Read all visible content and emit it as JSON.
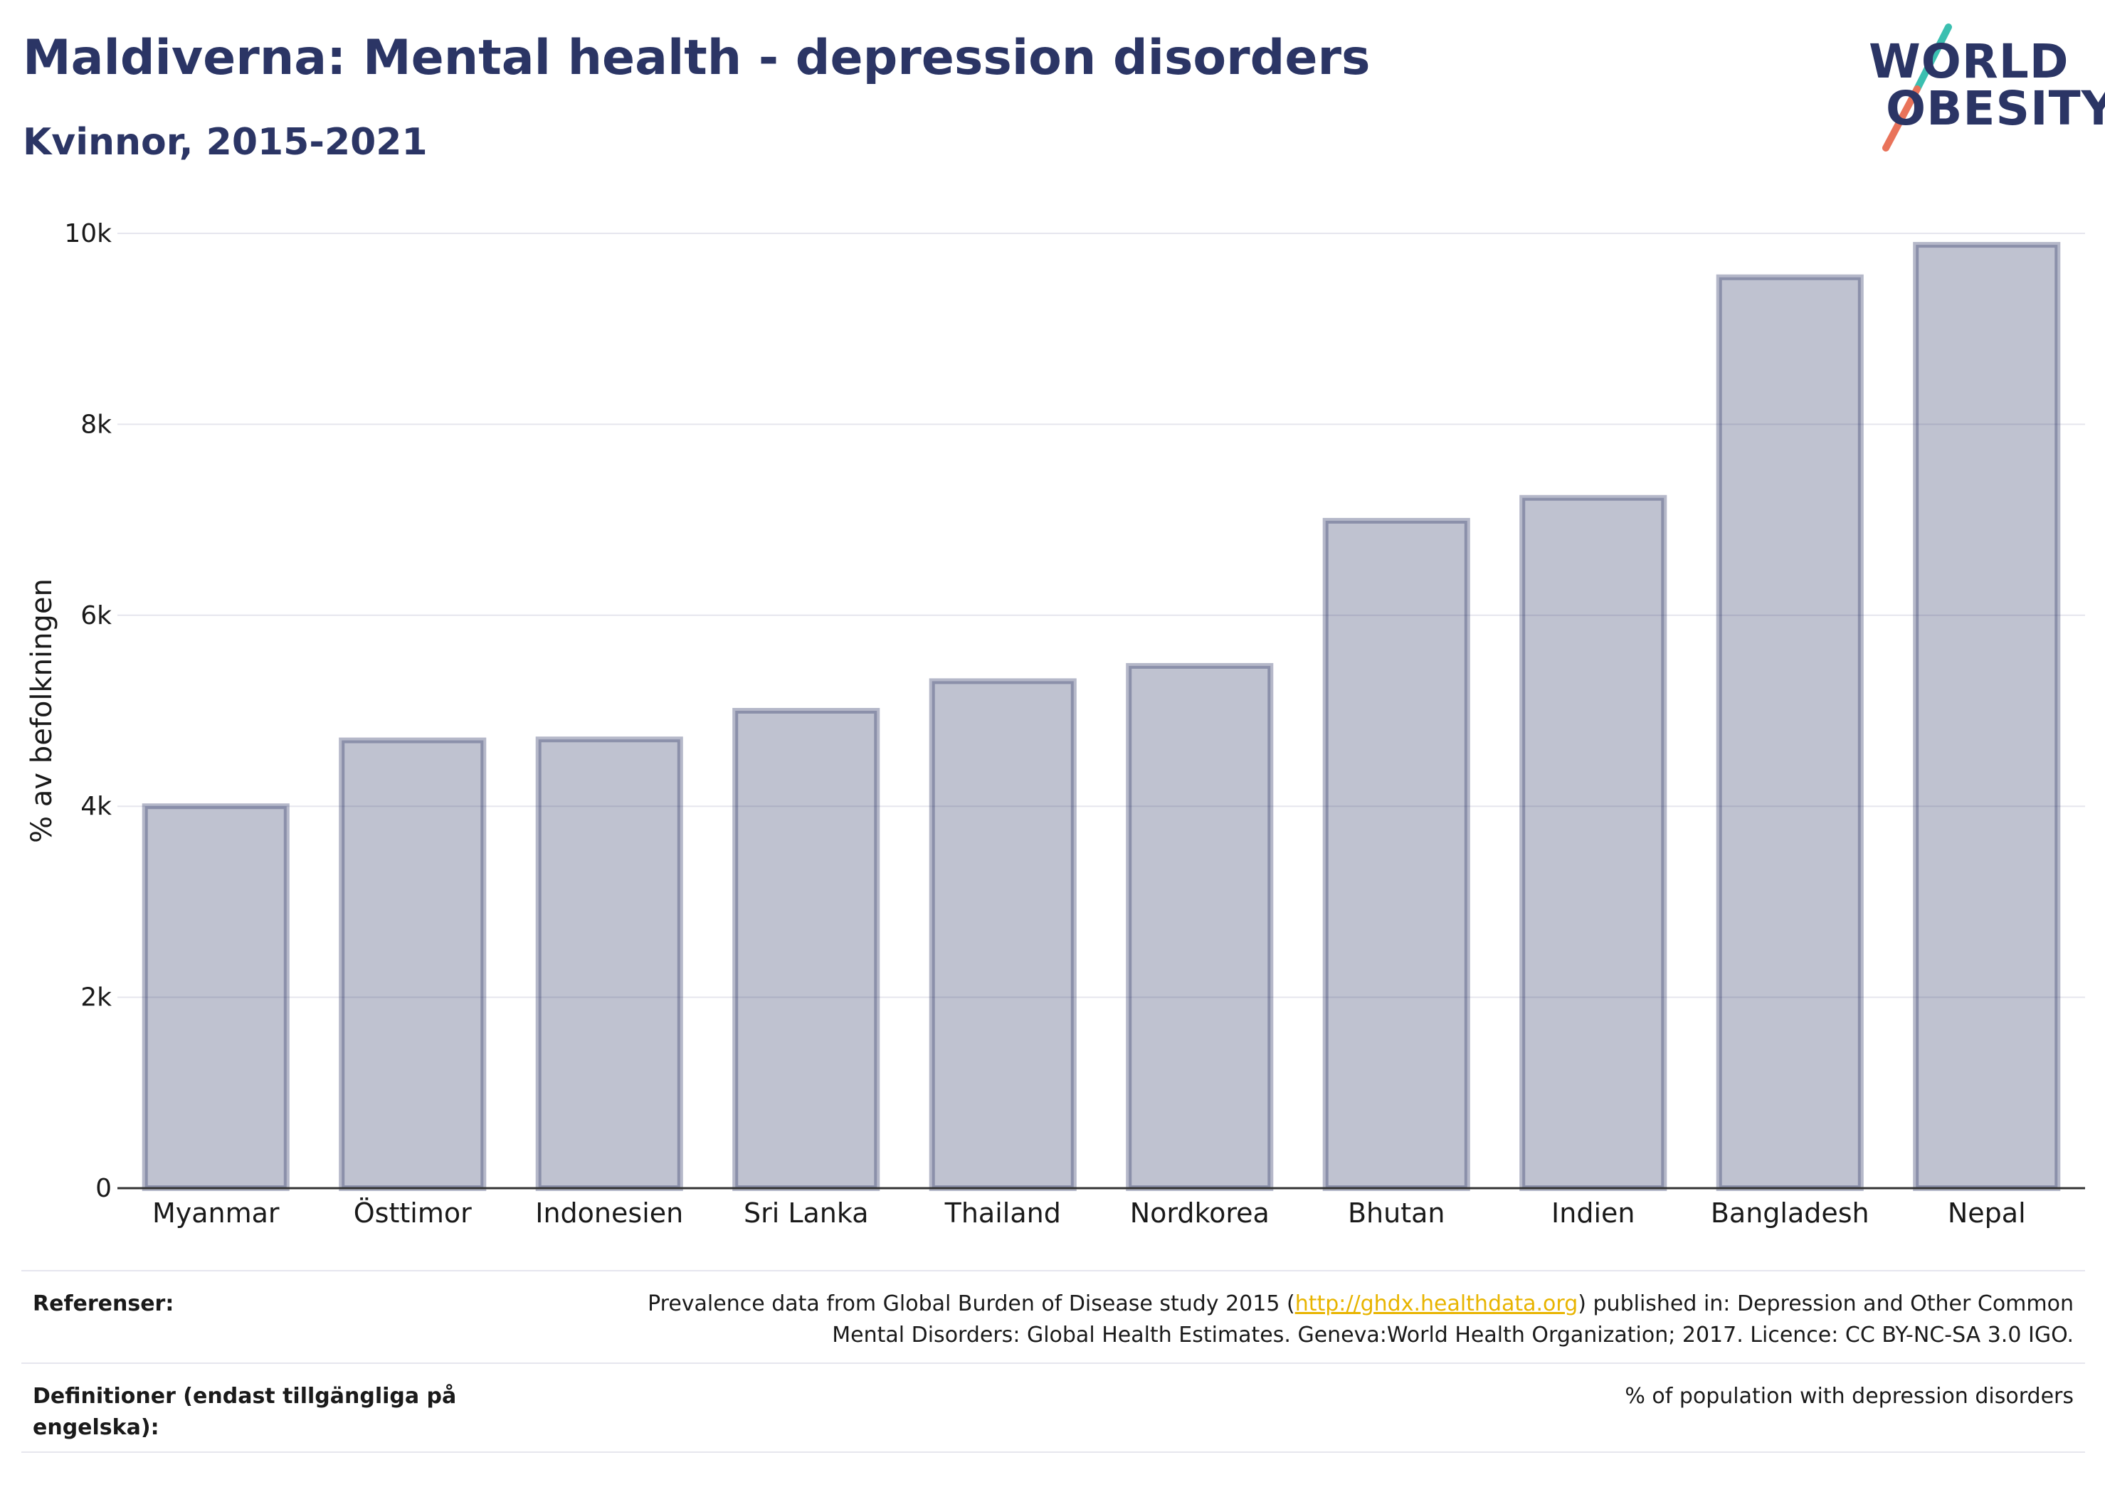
{
  "header": {
    "title": "Maldiverna: Mental health - depression disorders",
    "subtitle": "Kvinnor, 2015-2021"
  },
  "logo": {
    "line1": "WORLD",
    "line2": "OBESITY"
  },
  "chart_data": {
    "type": "bar",
    "categories": [
      "Myanmar",
      "Östtimor",
      "Indonesien",
      "Sri Lanka",
      "Thailand",
      "Nordkorea",
      "Bhutan",
      "Indien",
      "Bangladesh",
      "Nepal"
    ],
    "values": [
      4000,
      4690,
      4700,
      5000,
      5310,
      5470,
      6990,
      7230,
      9540,
      9880
    ],
    "ylabel": "% av befolkningen",
    "ylim": [
      0,
      10000
    ],
    "yticks": [
      0,
      2000,
      4000,
      6000,
      8000,
      10000
    ],
    "ytick_labels": [
      "0",
      "2k",
      "4k",
      "6k",
      "8k",
      "10k"
    ],
    "grid": true,
    "bar_color": "#2b3565"
  },
  "footer": {
    "references_label": "Referenser:",
    "references_line1_pre": "Prevalence data from Global Burden of Disease study 2015 (",
    "references_link": "http://ghdx.healthdata.org",
    "references_line1_post": ") published in: Depression and Other Common",
    "references_line2": "Mental Disorders: Global Health Estimates. Geneva:World Health Organization; 2017. Licence: CC BY-NC-SA 3.0 IGO.",
    "definitions_label_line1": "Definitioner (endast tillgängliga på",
    "definitions_label_line2": "engelska):",
    "definitions_text": "% of population with depression disorders"
  }
}
